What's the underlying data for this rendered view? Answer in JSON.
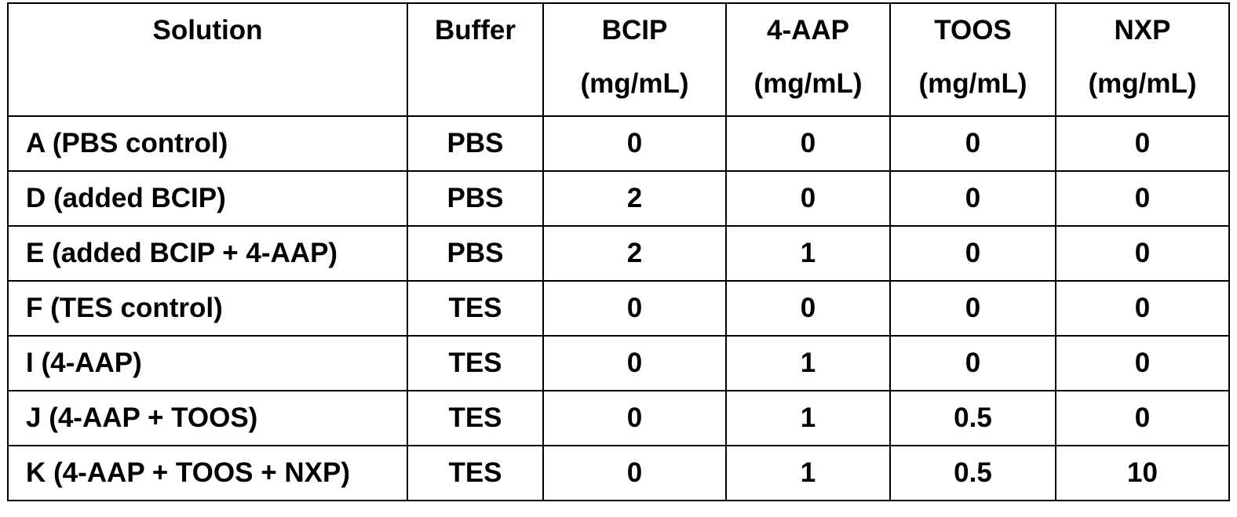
{
  "table": {
    "headers": [
      {
        "line1": "Solution",
        "line2": ""
      },
      {
        "line1": "Buffer",
        "line2": ""
      },
      {
        "line1": "BCIP",
        "line2": "(mg/mL)"
      },
      {
        "line1": "4-AAP",
        "line2": "(mg/mL)"
      },
      {
        "line1": "TOOS",
        "line2": "(mg/mL)"
      },
      {
        "line1": "NXP",
        "line2": "(mg/mL)"
      }
    ],
    "rows": [
      [
        "A (PBS control)",
        "PBS",
        "0",
        "0",
        "0",
        "0"
      ],
      [
        "D (added BCIP)",
        "PBS",
        "2",
        "0",
        "0",
        "0"
      ],
      [
        "E (added BCIP + 4-AAP)",
        "PBS",
        "2",
        "1",
        "0",
        "0"
      ],
      [
        "F (TES control)",
        "TES",
        "0",
        "0",
        "0",
        "0"
      ],
      [
        "I (4-AAP)",
        "TES",
        "0",
        "1",
        "0",
        "0"
      ],
      [
        "J (4-AAP + TOOS)",
        "TES",
        "0",
        "1",
        "0.5",
        "0"
      ],
      [
        "K (4-AAP + TOOS + NXP)",
        "TES",
        "0",
        "1",
        "0.5",
        "10"
      ]
    ]
  }
}
